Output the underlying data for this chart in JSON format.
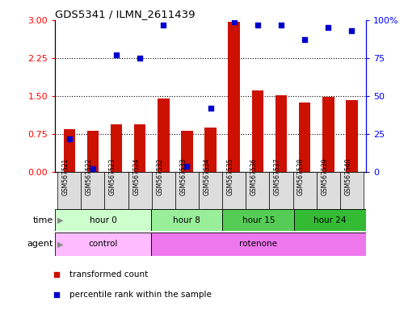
{
  "title": "GDS5341 / ILMN_2611439",
  "samples": [
    "GSM567521",
    "GSM567522",
    "GSM567523",
    "GSM567524",
    "GSM567532",
    "GSM567533",
    "GSM567534",
    "GSM567535",
    "GSM567536",
    "GSM567537",
    "GSM567538",
    "GSM567539",
    "GSM567540"
  ],
  "red_values": [
    0.85,
    0.82,
    0.95,
    0.95,
    1.45,
    0.82,
    0.88,
    2.97,
    1.62,
    1.52,
    1.38,
    1.48,
    1.42
  ],
  "blue_values": [
    0.22,
    0.02,
    0.77,
    0.75,
    0.97,
    0.04,
    0.42,
    0.99,
    0.97,
    0.97,
    0.87,
    0.95,
    0.93
  ],
  "time_groups": [
    {
      "label": "hour 0",
      "start": 0,
      "end": 4,
      "color": "#ccffcc"
    },
    {
      "label": "hour 8",
      "start": 4,
      "end": 7,
      "color": "#99ee99"
    },
    {
      "label": "hour 15",
      "start": 7,
      "end": 10,
      "color": "#55cc55"
    },
    {
      "label": "hour 24",
      "start": 10,
      "end": 13,
      "color": "#33bb33"
    }
  ],
  "agent_groups": [
    {
      "label": "control",
      "start": 0,
      "end": 4,
      "color": "#ffbbff"
    },
    {
      "label": "rotenone",
      "start": 4,
      "end": 13,
      "color": "#ee77ee"
    }
  ],
  "red_ylim": [
    0,
    3
  ],
  "red_yticks": [
    0,
    0.75,
    1.5,
    2.25,
    3
  ],
  "blue_ylim": [
    0,
    1
  ],
  "blue_yticklabels": [
    "0",
    "25",
    "50",
    "75",
    "100%"
  ],
  "dotted_yvals": [
    0.75,
    1.5,
    2.25
  ],
  "bar_color": "#cc1100",
  "dot_color": "#0000cc",
  "bar_width": 0.5,
  "bg_color": "#ffffff"
}
